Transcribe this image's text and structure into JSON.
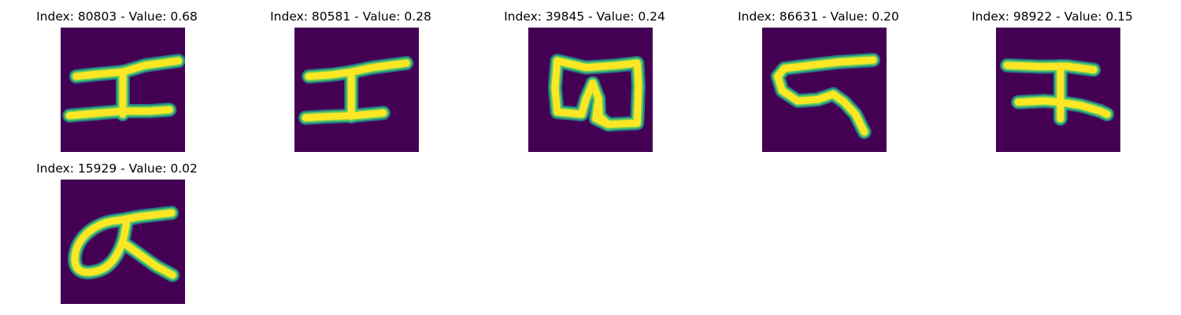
{
  "colors": {
    "background": "#440154",
    "stroke_mid": "#21918c",
    "stroke_core": "#fde725",
    "stroke_edge": "#5ec962"
  },
  "panels": [
    {
      "title": "Index: 80803 - Value: 0.68",
      "index": 80803,
      "value": 0.68
    },
    {
      "title": "Index: 80581 - Value: 0.28",
      "index": 80581,
      "value": 0.28
    },
    {
      "title": "Index: 39845 - Value: 0.24",
      "index": 39845,
      "value": 0.24
    },
    {
      "title": "Index: 86631 - Value: 0.20",
      "index": 86631,
      "value": 0.2
    },
    {
      "title": "Index: 98922 - Value: 0.15",
      "index": 98922,
      "value": 0.15
    },
    {
      "title": "Index: 15929 - Value: 0.02",
      "index": 15929,
      "value": 0.02
    }
  ]
}
